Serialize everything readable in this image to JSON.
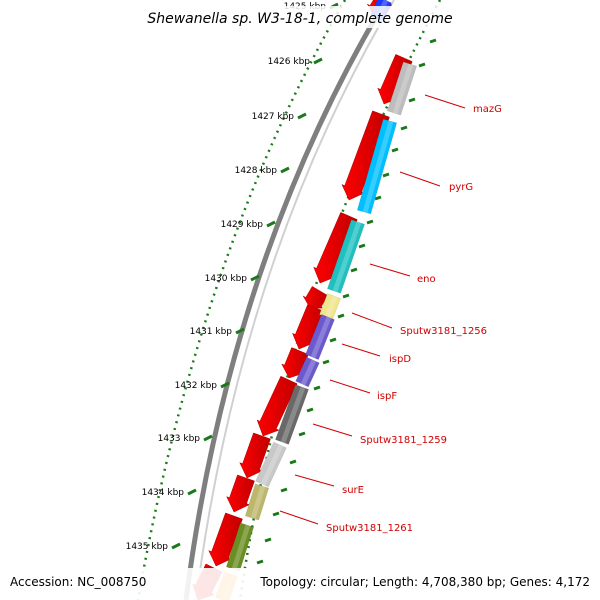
{
  "title": "Shewanella sp. W3-18-1, complete genome",
  "footer": {
    "accession": "Accession: NC_008750",
    "topology": "Topology: circular; Length: 4,708,380 bp; Genes: 4,172"
  },
  "ruler": {
    "labels": [
      "1425 kbp",
      "1426 kbp",
      "1427 kbp",
      "1428 kbp",
      "1429 kbp",
      "1430 kbp",
      "1431 kbp",
      "1432 kbp",
      "1433 kbp",
      "1434 kbp",
      "1435 kbp"
    ]
  },
  "genes": [
    {
      "name": "mazG",
      "color": "#bdbdbd"
    },
    {
      "name": "pyrG",
      "color": "#00bfff"
    },
    {
      "name": "eno",
      "color": "#20c0c0"
    },
    {
      "name": "Sputw3181_1256",
      "color": "#f0e68c"
    },
    {
      "name": "ispD",
      "color": "#6a5acd"
    },
    {
      "name": "ispF",
      "color": "#6a5acd"
    },
    {
      "name": "Sputw3181_1259",
      "color": "#696969"
    },
    {
      "name": "surE",
      "color": "#c8c8c8"
    },
    {
      "name": "Sputw3181_1261",
      "color": "#bdb76b"
    }
  ],
  "colors": {
    "forward_cds": "#ff0000",
    "label_red": "#d00000",
    "tick_green": "#1a7a1a",
    "backbone": "#7f7f7f"
  }
}
